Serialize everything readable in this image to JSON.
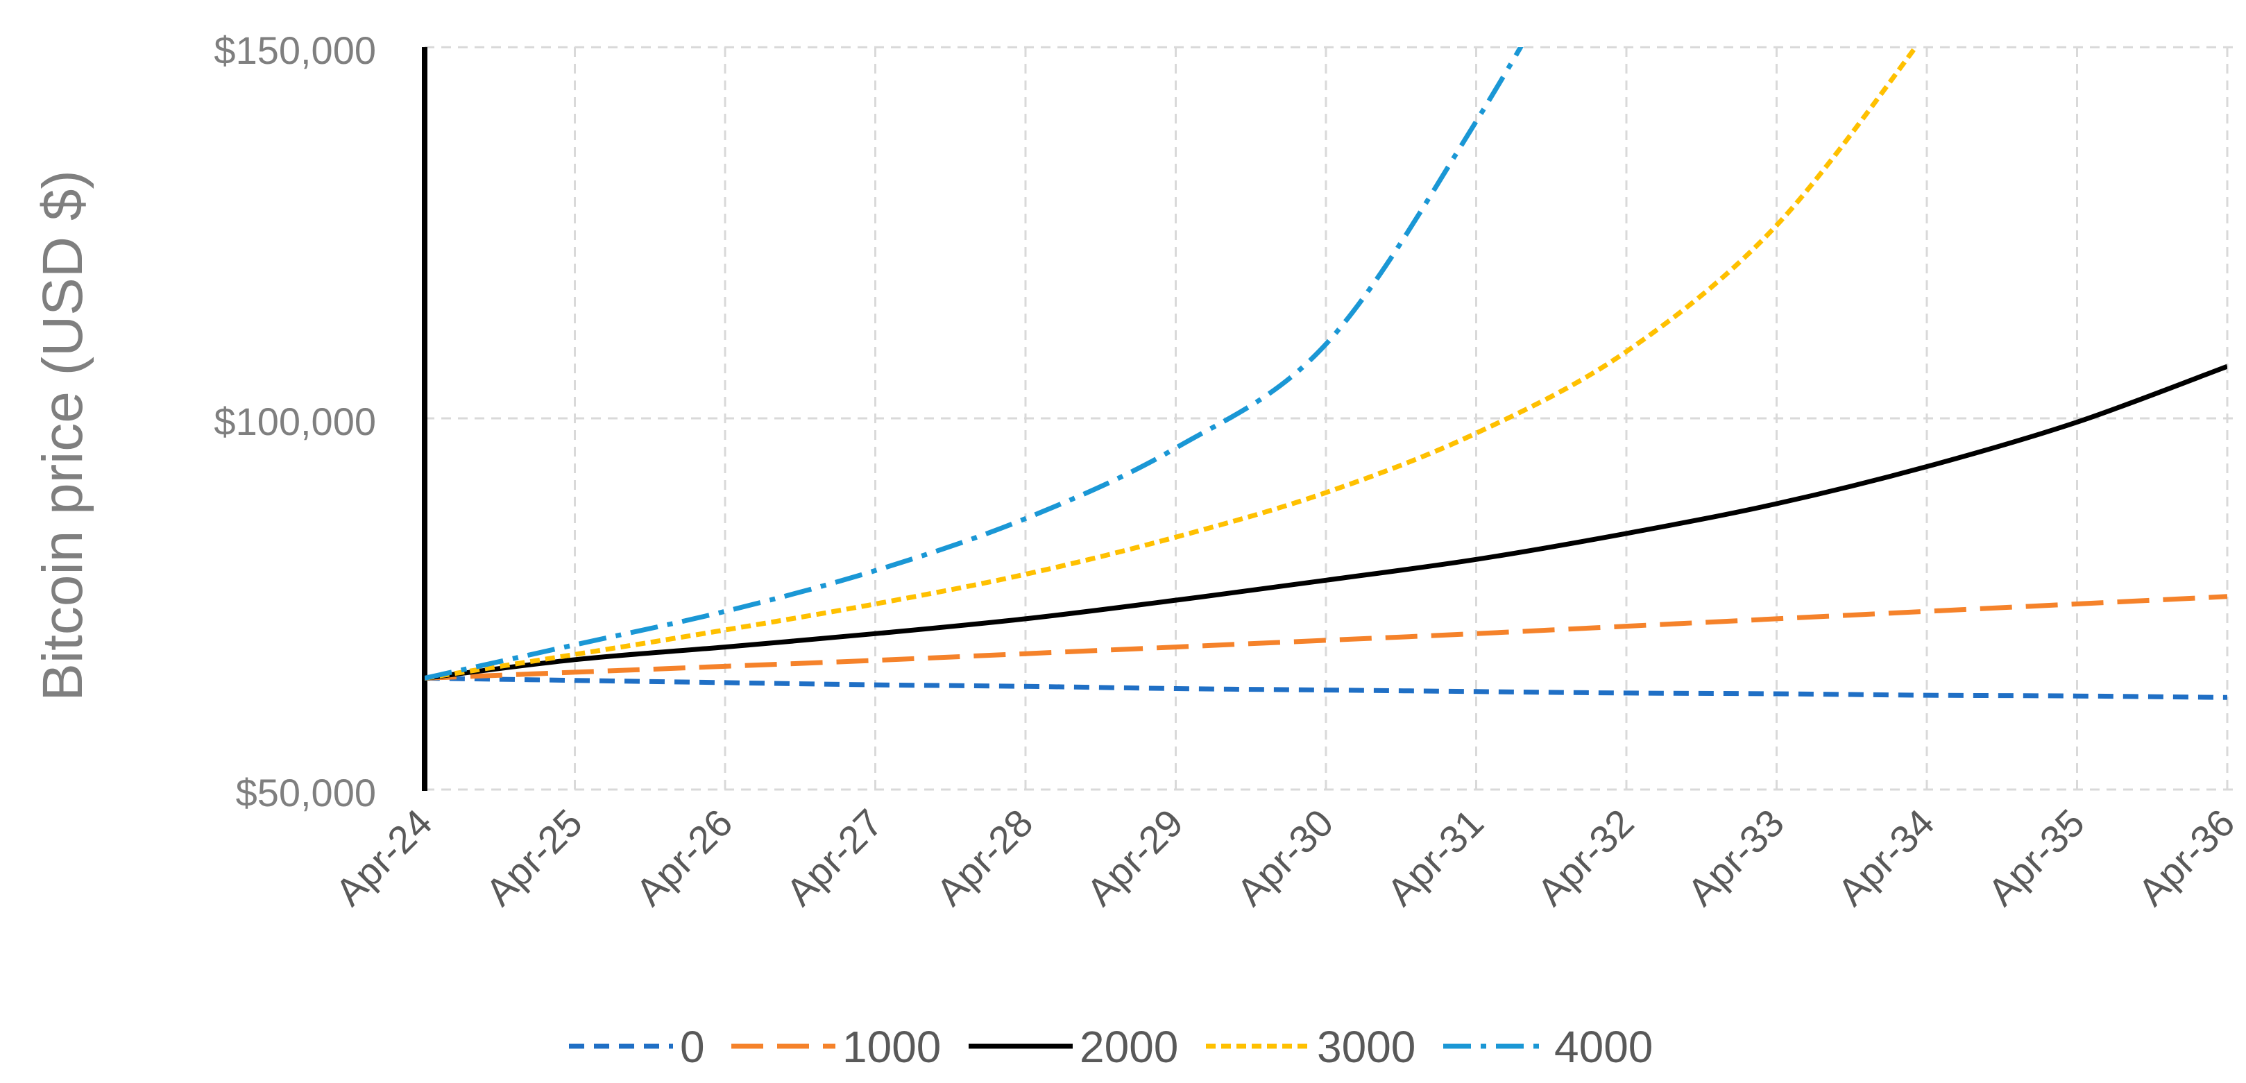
{
  "chart_data": {
    "type": "line",
    "title": "",
    "ylabel": "Bitcoin price (USD $)",
    "xlabel": "",
    "x": [
      "Apr-24",
      "Apr-25",
      "Apr-26",
      "Apr-27",
      "Apr-28",
      "Apr-29",
      "Apr-30",
      "Apr-31",
      "Apr-32",
      "Apr-33",
      "Apr-34",
      "Apr-35",
      "Apr-36"
    ],
    "ylim": [
      50000,
      150000
    ],
    "yticks": [
      50000,
      100000,
      150000
    ],
    "ytick_labels": [
      "$50,000",
      "$100,000",
      "$150,000"
    ],
    "grid": true,
    "legend_position": "bottom",
    "series": [
      {
        "name": "0",
        "color": "#1F6FC5",
        "dash": "dashed-short",
        "values": [
          65000,
          64700,
          64400,
          64100,
          63900,
          63600,
          63400,
          63200,
          63000,
          62900,
          62700,
          62600,
          62400
        ]
      },
      {
        "name": "1000",
        "color": "#F5822A",
        "dash": "dashed-long",
        "values": [
          65000,
          65800,
          66600,
          67400,
          68300,
          69200,
          70100,
          71000,
          72000,
          73000,
          74000,
          75000,
          76000
        ]
      },
      {
        "name": "2000",
        "color": "#000000",
        "dash": "solid",
        "values": [
          65000,
          67500,
          69200,
          71000,
          73000,
          75500,
          78200,
          81000,
          84500,
          88500,
          93500,
          99500,
          107000
        ]
      },
      {
        "name": "3000",
        "color": "#FFC000",
        "dash": "dotted",
        "values": [
          65000,
          68200,
          71500,
          75000,
          79000,
          84000,
          90000,
          98000,
          109000,
          126000,
          152000,
          null,
          null
        ]
      },
      {
        "name": "4000",
        "color": "#1A97D5",
        "dash": "dash-dot",
        "values": [
          65000,
          69500,
          74000,
          79500,
          86500,
          96000,
          110000,
          140000,
          175000,
          null,
          null,
          null,
          null
        ]
      }
    ]
  }
}
